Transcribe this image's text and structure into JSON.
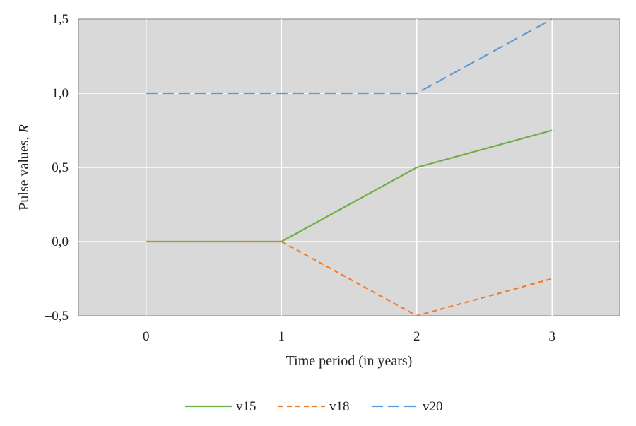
{
  "chart_data": {
    "type": "line",
    "title": "",
    "xlabel": "Time period (in years)",
    "ylabel": "Pulse values, R",
    "ylabel_main": "Pulse values, ",
    "ylabel_italic": "R",
    "x": [
      0,
      1,
      2,
      3
    ],
    "x_tick_labels": [
      "0",
      "1",
      "2",
      "3"
    ],
    "xlim": [
      -0.5,
      3.5
    ],
    "ylim": [
      -0.5,
      1.5
    ],
    "y_ticks": [
      -0.5,
      0.0,
      0.5,
      1.0,
      1.5
    ],
    "y_tick_labels": [
      "–0,5",
      "0,0",
      "0,5",
      "1,0",
      "1,5"
    ],
    "grid": true,
    "legend_position": "bottom",
    "plot_background": "#d9d9d9",
    "series": [
      {
        "name": "v15",
        "values": [
          0,
          0,
          0.5,
          0.75
        ],
        "color": "#70ad47",
        "dash": "solid"
      },
      {
        "name": "v18",
        "values": [
          0,
          0,
          -0.5,
          -0.25
        ],
        "color": "#ed7d31",
        "dash": "short-dash"
      },
      {
        "name": "v20",
        "values": [
          1,
          1,
          1,
          1.5
        ],
        "color": "#5b9bd5",
        "dash": "long-dash"
      }
    ]
  }
}
